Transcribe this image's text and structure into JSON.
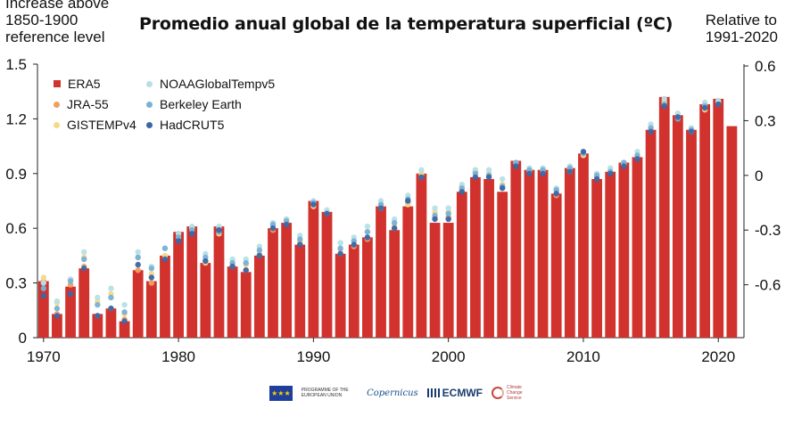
{
  "header": {
    "left_axis_label": [
      "Increase above",
      "1850-1900",
      "reference level"
    ],
    "title": "Promedio anual global de la temperatura superficial (ºC)",
    "right_axis_label": [
      "Relative to",
      "1991-2020"
    ]
  },
  "legend": {
    "items": [
      {
        "label": "ERA5",
        "color": "#d2322d",
        "shape": "square"
      },
      {
        "label": "JRA-55",
        "color": "#f0a060",
        "shape": "dot"
      },
      {
        "label": "GISTEMPv4",
        "color": "#f5d88a",
        "shape": "dot"
      },
      {
        "label": "NOAAGlobalTempv5",
        "color": "#b6e0e6",
        "shape": "dot"
      },
      {
        "label": "Berkeley Earth",
        "color": "#79b1d6",
        "shape": "dot"
      },
      {
        "label": "HadCRUT5",
        "color": "#3a67a8",
        "shape": "dot"
      }
    ]
  },
  "logos": {
    "eu_text": "PROGRAMME OF THE EUROPEAN UNION",
    "copernicus": "Copernicus",
    "ecmwf": "ECMWF",
    "c3s": "Climate Change Service"
  },
  "chart_data": {
    "type": "bar",
    "x": [
      1970,
      1971,
      1972,
      1973,
      1974,
      1975,
      1976,
      1977,
      1978,
      1979,
      1980,
      1981,
      1982,
      1983,
      1984,
      1985,
      1986,
      1987,
      1988,
      1989,
      1990,
      1991,
      1992,
      1993,
      1994,
      1995,
      1996,
      1997,
      1998,
      1999,
      2000,
      2001,
      2002,
      2003,
      2004,
      2005,
      2006,
      2007,
      2008,
      2009,
      2010,
      2011,
      2012,
      2013,
      2014,
      2015,
      2016,
      2017,
      2018,
      2019,
      2020,
      2021
    ],
    "xticks": [
      1970,
      1980,
      1990,
      2000,
      2010,
      2020
    ],
    "ylim": [
      0,
      1.5
    ],
    "yticks_left": [
      "0",
      "0.3",
      "0.6",
      "0.9",
      "1.2",
      "1.5"
    ],
    "yticks_left_values": [
      0,
      0.3,
      0.6,
      0.9,
      1.2,
      1.5
    ],
    "right_axis_offset": 0.89,
    "yticks_right": [
      "-0.6",
      "-0.3",
      "0",
      "0.3",
      "0.6"
    ],
    "yticks_right_values": [
      -0.6,
      -0.3,
      0,
      0.3,
      0.6
    ],
    "colors": {
      "bar": "#d2322d",
      "jra55": "#f0a060",
      "gistemp": "#f5d88a",
      "noaa": "#b6e0e6",
      "berkeley": "#79b1d6",
      "hadcrut": "#3a67a8"
    },
    "series": [
      {
        "name": "ERA5",
        "values": [
          0.31,
          0.13,
          0.28,
          0.38,
          0.13,
          0.16,
          0.09,
          0.37,
          0.31,
          0.45,
          0.58,
          0.61,
          0.41,
          0.61,
          0.39,
          0.36,
          0.45,
          0.6,
          0.63,
          0.51,
          0.75,
          0.69,
          0.46,
          0.51,
          0.55,
          0.72,
          0.59,
          0.72,
          0.9,
          0.63,
          0.63,
          0.8,
          0.88,
          0.87,
          0.8,
          0.97,
          0.92,
          0.92,
          0.79,
          0.93,
          1.01,
          0.87,
          0.91,
          0.96,
          0.99,
          1.14,
          1.32,
          1.22,
          1.14,
          1.28,
          1.31,
          1.16
        ]
      },
      {
        "name": "JRA-55",
        "values": [
          0.31,
          0.13,
          0.29,
          0.39,
          0.12,
          0.16,
          0.1,
          0.37,
          0.3,
          0.44,
          0.57,
          0.6,
          0.42,
          0.6,
          0.39,
          0.37,
          0.45,
          0.59,
          0.63,
          0.52,
          0.73,
          0.69,
          0.46,
          0.5,
          0.54,
          0.73,
          0.6,
          0.74,
          0.89,
          0.66,
          0.66,
          0.81,
          0.91,
          0.89,
          0.82,
          0.96,
          0.91,
          0.91,
          0.78,
          0.91,
          1.0,
          0.88,
          0.91,
          0.95,
          0.99,
          1.15,
          1.3,
          1.21,
          1.14,
          1.28,
          1.29,
          null
        ]
      },
      {
        "name": "GISTEMPv4",
        "values": [
          0.33,
          0.19,
          0.32,
          0.44,
          0.2,
          0.24,
          0.13,
          0.44,
          0.35,
          0.45,
          0.55,
          0.6,
          0.41,
          0.57,
          0.4,
          0.4,
          0.46,
          0.61,
          0.65,
          0.53,
          0.72,
          0.69,
          0.48,
          0.53,
          0.58,
          0.71,
          0.62,
          0.73,
          0.9,
          0.69,
          0.69,
          0.83,
          0.92,
          0.9,
          0.84,
          0.96,
          0.92,
          0.92,
          0.81,
          0.93,
          1.0,
          0.89,
          0.92,
          0.95,
          1.0,
          1.15,
          1.29,
          1.21,
          1.13,
          1.25,
          1.29,
          null
        ]
      },
      {
        "name": "NOAAGlobalTempv5",
        "values": [
          0.3,
          0.2,
          0.32,
          0.47,
          0.22,
          0.27,
          0.18,
          0.47,
          0.39,
          0.49,
          0.57,
          0.61,
          0.46,
          0.61,
          0.43,
          0.43,
          0.5,
          0.63,
          0.65,
          0.56,
          0.75,
          0.7,
          0.52,
          0.55,
          0.61,
          0.75,
          0.65,
          0.78,
          0.92,
          0.71,
          0.71,
          0.84,
          0.92,
          0.92,
          0.87,
          0.96,
          0.93,
          0.93,
          0.82,
          0.94,
          1.01,
          0.9,
          0.93,
          0.96,
          1.02,
          1.17,
          1.31,
          1.23,
          1.15,
          1.29,
          1.3,
          null
        ]
      },
      {
        "name": "Berkeley Earth",
        "values": [
          0.27,
          0.16,
          0.31,
          0.43,
          0.18,
          0.22,
          0.14,
          0.44,
          0.38,
          0.49,
          0.55,
          0.59,
          0.44,
          0.58,
          0.41,
          0.41,
          0.48,
          0.62,
          0.64,
          0.54,
          0.74,
          0.68,
          0.49,
          0.53,
          0.58,
          0.73,
          0.63,
          0.76,
          0.88,
          0.67,
          0.68,
          0.82,
          0.9,
          0.89,
          0.83,
          0.96,
          0.92,
          0.92,
          0.81,
          0.93,
          1.01,
          0.89,
          0.91,
          0.96,
          1.0,
          1.15,
          1.28,
          1.2,
          1.14,
          1.27,
          1.28,
          null
        ]
      },
      {
        "name": "HadCRUT5",
        "values": [
          0.23,
          0.12,
          0.24,
          0.38,
          0.12,
          0.16,
          0.09,
          0.4,
          0.33,
          0.43,
          0.53,
          0.57,
          0.42,
          0.59,
          0.39,
          0.37,
          0.45,
          0.6,
          0.62,
          0.51,
          0.73,
          0.68,
          0.46,
          0.51,
          0.55,
          0.71,
          0.6,
          0.75,
          0.88,
          0.65,
          0.65,
          0.8,
          0.88,
          0.88,
          0.82,
          0.94,
          0.9,
          0.9,
          0.79,
          0.91,
          1.02,
          0.87,
          0.9,
          0.94,
          0.98,
          1.13,
          1.27,
          1.21,
          1.13,
          1.26,
          1.28,
          null
        ]
      }
    ]
  }
}
